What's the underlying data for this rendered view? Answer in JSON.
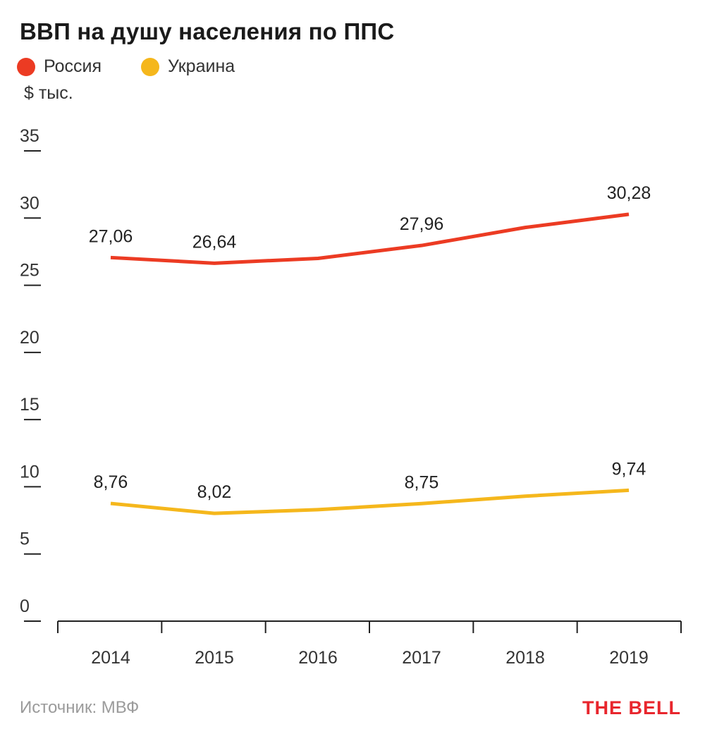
{
  "title": "ВВП на душу населения по ППС",
  "unit": "$ тыс.",
  "source": "Источник: МВФ",
  "brand": "THE BELL",
  "colors": {
    "russia": "#ec3b23",
    "ukraine": "#f5b71c",
    "axis": "#222222"
  },
  "chart_data": {
    "type": "line",
    "x": [
      "2014",
      "2015",
      "2016",
      "2017",
      "2018",
      "2019"
    ],
    "ylim": [
      0,
      35
    ],
    "yticks": [
      "0",
      "5",
      "10",
      "15",
      "20",
      "25",
      "30",
      "35"
    ],
    "grid": false,
    "legend_position": "top-left",
    "series": [
      {
        "name": "Россия",
        "color": "#ec3b23",
        "values": [
          27.06,
          26.64,
          27.0,
          27.96,
          29.3,
          30.28
        ],
        "labels": [
          "27,06",
          "26,64",
          "",
          "27,96",
          "",
          "30,28"
        ]
      },
      {
        "name": "Украина",
        "color": "#f5b71c",
        "values": [
          8.76,
          8.02,
          8.3,
          8.75,
          9.3,
          9.74
        ],
        "labels": [
          "8,76",
          "8,02",
          "",
          "8,75",
          "",
          "9,74"
        ]
      }
    ]
  }
}
